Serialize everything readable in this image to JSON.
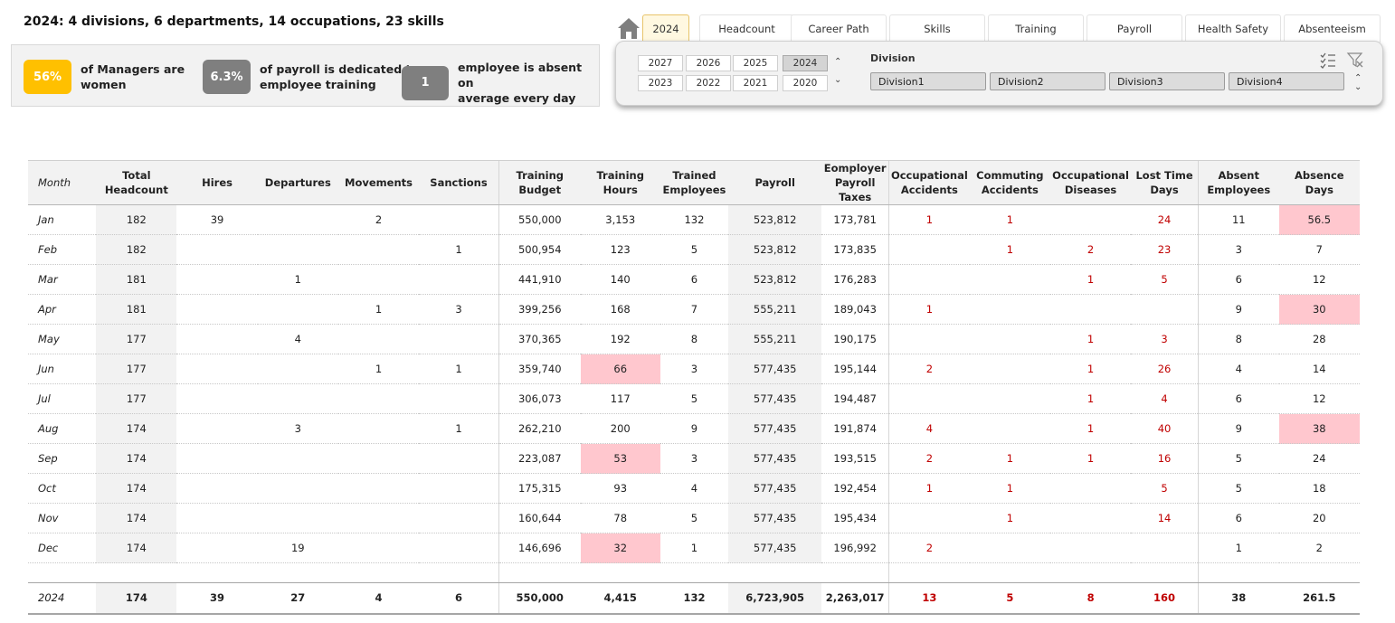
{
  "headline": "2024: 4 divisions, 6 departments, 14 occupations, 23 skills",
  "kpis": [
    {
      "value": "56%",
      "text1": "of Managers are",
      "text2": "women",
      "color": "#ffc000"
    },
    {
      "value": "6.3%",
      "text1": "of payroll is dedicated to",
      "text2": "employee training",
      "color": "#7f7f7f"
    },
    {
      "value": "1",
      "text1": "employee is absent on",
      "text2": "average every day",
      "color": "#7f7f7f"
    }
  ],
  "tabs": [
    "2024",
    "Headcount",
    "Career Path",
    "Skills",
    "Training",
    "Payroll",
    "Health  Safety",
    "Absenteeism"
  ],
  "years": [
    "2027",
    "2026",
    "2025",
    "2024",
    "2023",
    "2022",
    "2021",
    "2020"
  ],
  "selected_year": "2024",
  "division": {
    "title": "Division",
    "items": [
      "Division1",
      "Division2",
      "Division3",
      "Division4"
    ]
  },
  "icons": {
    "home": "home-icon",
    "multi_select": "multi-select-icon",
    "clear_filter": "clear-filter-icon",
    "scroll_up": "chevron-up-icon",
    "scroll_down": "chevron-down-icon"
  },
  "arrows": {
    "up": "⌃",
    "down": "⌄"
  },
  "highlight_color": "#ffc7ce",
  "accent_red": "#c00000",
  "table": {
    "headers": [
      "Month",
      "Total\nHeadcount",
      "Hires",
      "Departures",
      "Movements",
      "Sanctions",
      "Training\nBudget",
      "Training Hours",
      "Trained\nEmployees",
      "Payroll",
      "Eomployer\nPayroll Taxes",
      "Occupational\nAccidents",
      "Commuting\nAccidents",
      "Occupational\nDiseases",
      "Lost Time\nDays",
      "Absent\nEmployees",
      "Absence Days"
    ],
    "rows": [
      [
        "Jan",
        "182",
        "39",
        "",
        "2",
        "",
        "550,000",
        "3,153",
        "132",
        "523,812",
        "173,781",
        "1",
        "1",
        "",
        "24",
        "11",
        "56.5"
      ],
      [
        "Feb",
        "182",
        "",
        "",
        "",
        "1",
        "500,954",
        "123",
        "5",
        "523,812",
        "173,835",
        "",
        "1",
        "2",
        "23",
        "3",
        "7"
      ],
      [
        "Mar",
        "181",
        "",
        "1",
        "",
        "",
        "441,910",
        "140",
        "6",
        "523,812",
        "176,283",
        "",
        "",
        "1",
        "5",
        "6",
        "12"
      ],
      [
        "Apr",
        "181",
        "",
        "",
        "1",
        "3",
        "399,256",
        "168",
        "7",
        "555,211",
        "189,043",
        "1",
        "",
        "",
        "",
        "9",
        "30"
      ],
      [
        "May",
        "177",
        "",
        "4",
        "",
        "",
        "370,365",
        "192",
        "8",
        "555,211",
        "190,175",
        "",
        "",
        "1",
        "3",
        "8",
        "28"
      ],
      [
        "Jun",
        "177",
        "",
        "",
        "1",
        "1",
        "359,740",
        "66",
        "3",
        "577,435",
        "195,144",
        "2",
        "",
        "1",
        "26",
        "4",
        "14"
      ],
      [
        "Jul",
        "177",
        "",
        "",
        "",
        "",
        "306,073",
        "117",
        "5",
        "577,435",
        "194,487",
        "",
        "",
        "1",
        "4",
        "6",
        "12"
      ],
      [
        "Aug",
        "174",
        "",
        "3",
        "",
        "1",
        "262,210",
        "200",
        "9",
        "577,435",
        "191,874",
        "4",
        "",
        "1",
        "40",
        "9",
        "38"
      ],
      [
        "Sep",
        "174",
        "",
        "",
        "",
        "",
        "223,087",
        "53",
        "3",
        "577,435",
        "193,515",
        "2",
        "1",
        "1",
        "16",
        "5",
        "24"
      ],
      [
        "Oct",
        "174",
        "",
        "",
        "",
        "",
        "175,315",
        "93",
        "4",
        "577,435",
        "192,454",
        "1",
        "1",
        "",
        "5",
        "5",
        "18"
      ],
      [
        "Nov",
        "174",
        "",
        "",
        "",
        "",
        "160,644",
        "78",
        "5",
        "577,435",
        "195,434",
        "",
        "1",
        "",
        "14",
        "6",
        "20"
      ],
      [
        "Dec",
        "174",
        "",
        "19",
        "",
        "",
        "146,696",
        "32",
        "1",
        "577,435",
        "196,992",
        "2",
        "",
        "",
        "",
        "1",
        "2"
      ]
    ],
    "total": [
      "2024",
      "174",
      "39",
      "27",
      "4",
      "6",
      "550,000",
      "4,415",
      "132",
      "6,723,905",
      "2,263,017",
      "13",
      "5",
      "8",
      "160",
      "38",
      "261.5"
    ],
    "highlights": [
      [
        0,
        16
      ],
      [
        3,
        16
      ],
      [
        7,
        16
      ],
      [
        5,
        7
      ],
      [
        8,
        7
      ],
      [
        11,
        7
      ]
    ]
  }
}
